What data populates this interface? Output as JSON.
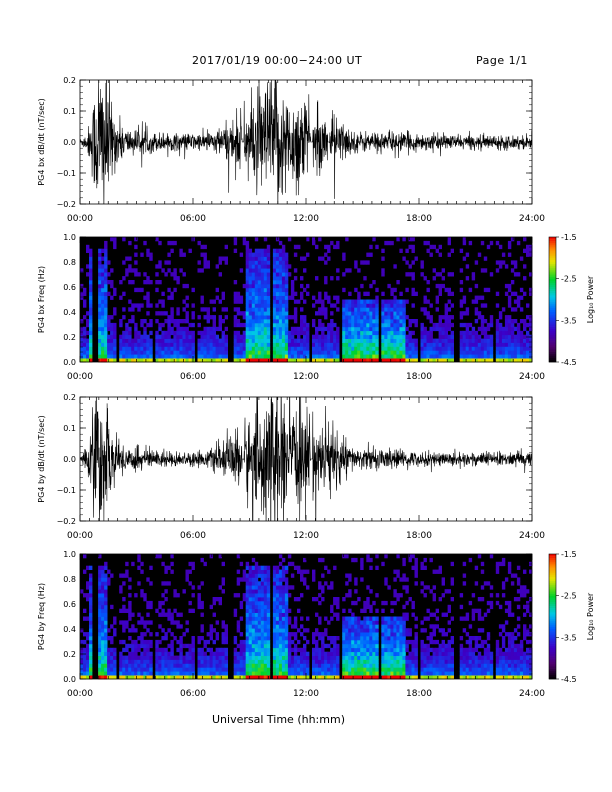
{
  "header": {
    "title": "2017/01/19  00:00−24:00 UT",
    "page_label": "Page 1/1"
  },
  "footer": {
    "x_axis_title": "Universal Time (hh:mm)"
  },
  "chart_data": [
    {
      "type": "line",
      "ylabel": "PG4 bx dB/dt (nT/sec)",
      "x_unit": "hours UT",
      "xlim": [
        0,
        24
      ],
      "ylim": [
        -0.2,
        0.2
      ],
      "x_tick_labels": [
        "00:00",
        "06:00",
        "12:00",
        "18:00",
        "24:00"
      ],
      "y_tick_labels": [
        "0.2",
        "0.1",
        "0.0",
        "−0.1",
        "−0.2"
      ],
      "envelope": [
        {
          "x": 0.0,
          "y": 0.01
        },
        {
          "x": 0.4,
          "y": 0.03
        },
        {
          "x": 0.7,
          "y": 0.12
        },
        {
          "x": 1.0,
          "y": 0.25
        },
        {
          "x": 1.4,
          "y": 0.22
        },
        {
          "x": 1.8,
          "y": 0.08
        },
        {
          "x": 2.5,
          "y": 0.04
        },
        {
          "x": 3.5,
          "y": 0.03
        },
        {
          "x": 5.0,
          "y": 0.025
        },
        {
          "x": 6.5,
          "y": 0.025
        },
        {
          "x": 7.5,
          "y": 0.04
        },
        {
          "x": 8.5,
          "y": 0.09
        },
        {
          "x": 9.5,
          "y": 0.14
        },
        {
          "x": 10.5,
          "y": 0.22
        },
        {
          "x": 11.0,
          "y": 0.12
        },
        {
          "x": 11.7,
          "y": 0.16
        },
        {
          "x": 12.3,
          "y": 0.08
        },
        {
          "x": 13.5,
          "y": 0.08
        },
        {
          "x": 14.5,
          "y": 0.03
        },
        {
          "x": 16.0,
          "y": 0.03
        },
        {
          "x": 18.0,
          "y": 0.025
        },
        {
          "x": 20.0,
          "y": 0.02
        },
        {
          "x": 22.0,
          "y": 0.02
        },
        {
          "x": 24.0,
          "y": 0.02
        }
      ],
      "gaps_hours": [
        8.65,
        12.3,
        13.2
      ]
    },
    {
      "type": "heatmap",
      "ylabel": "PG4 bx Freq (Hz)",
      "colorbar_label": "Log₁₀ Power",
      "xlim": [
        0,
        24
      ],
      "ylim": [
        0,
        1.0
      ],
      "x_tick_labels": [
        "00:00",
        "06:00",
        "12:00",
        "18:00",
        "24:00"
      ],
      "y_tick_labels": [
        "1.0",
        "0.8",
        "0.6",
        "0.4",
        "0.2",
        "0.0"
      ],
      "colorbar_ticks": [
        "-1.5",
        "-2.5",
        "-3.5",
        "-4.5"
      ],
      "colorbar_range": [
        -4.5,
        -1.5
      ],
      "blank_columns_hours": [
        0.8,
        2.0,
        3.9,
        6.2,
        8.0,
        10.2,
        12.3,
        13.9,
        15.9,
        18.0,
        20.0,
        22.0
      ],
      "high_power_bands": [
        {
          "from_hour": 0.5,
          "to_hour": 1.5,
          "max_freq": 0.9
        },
        {
          "from_hour": 8.8,
          "to_hour": 11.0,
          "max_freq": 0.9
        },
        {
          "from_hour": 13.8,
          "to_hour": 17.2,
          "max_freq": 0.5
        }
      ]
    },
    {
      "type": "line",
      "ylabel": "PG4 by dB/dt (nT/sec)",
      "x_unit": "hours UT",
      "xlim": [
        0,
        24
      ],
      "ylim": [
        -0.2,
        0.2
      ],
      "x_tick_labels": [
        "00:00",
        "06:00",
        "12:00",
        "18:00",
        "24:00"
      ],
      "y_tick_labels": [
        "0.2",
        "0.1",
        "0.0",
        "−0.1",
        "−0.2"
      ],
      "envelope": [
        {
          "x": 0.0,
          "y": 0.01
        },
        {
          "x": 0.4,
          "y": 0.04
        },
        {
          "x": 0.7,
          "y": 0.14
        },
        {
          "x": 1.0,
          "y": 0.22
        },
        {
          "x": 1.4,
          "y": 0.15
        },
        {
          "x": 1.8,
          "y": 0.06
        },
        {
          "x": 2.5,
          "y": 0.04
        },
        {
          "x": 3.5,
          "y": 0.03
        },
        {
          "x": 5.0,
          "y": 0.02
        },
        {
          "x": 6.5,
          "y": 0.02
        },
        {
          "x": 7.5,
          "y": 0.04
        },
        {
          "x": 8.5,
          "y": 0.09
        },
        {
          "x": 9.5,
          "y": 0.16
        },
        {
          "x": 10.5,
          "y": 0.22
        },
        {
          "x": 11.0,
          "y": 0.12
        },
        {
          "x": 11.7,
          "y": 0.15
        },
        {
          "x": 12.5,
          "y": 0.1
        },
        {
          "x": 13.3,
          "y": 0.11
        },
        {
          "x": 14.5,
          "y": 0.03
        },
        {
          "x": 16.0,
          "y": 0.03
        },
        {
          "x": 18.0,
          "y": 0.02
        },
        {
          "x": 20.0,
          "y": 0.02
        },
        {
          "x": 22.0,
          "y": 0.02
        },
        {
          "x": 24.0,
          "y": 0.02
        }
      ],
      "gaps_hours": [
        8.65,
        12.3
      ]
    },
    {
      "type": "heatmap",
      "ylabel": "PG4 by Freq (Hz)",
      "colorbar_label": "Log₁₀ Power",
      "xlim": [
        0,
        24
      ],
      "ylim": [
        0,
        1.0
      ],
      "x_tick_labels": [
        "00:00",
        "06:00",
        "12:00",
        "18:00",
        "24:00"
      ],
      "y_tick_labels": [
        "1.0",
        "0.8",
        "0.6",
        "0.4",
        "0.2",
        "0.0"
      ],
      "colorbar_ticks": [
        "-1.5",
        "-2.5",
        "-3.5",
        "-4.5"
      ],
      "colorbar_range": [
        -4.5,
        -1.5
      ],
      "blank_columns_hours": [
        0.8,
        2.0,
        3.9,
        6.2,
        8.0,
        10.2,
        12.3,
        13.9,
        15.9,
        18.0,
        20.0,
        22.0
      ],
      "high_power_bands": [
        {
          "from_hour": 0.5,
          "to_hour": 1.5,
          "max_freq": 0.9
        },
        {
          "from_hour": 8.8,
          "to_hour": 11.0,
          "max_freq": 0.9
        },
        {
          "from_hour": 13.8,
          "to_hour": 17.2,
          "max_freq": 0.5
        }
      ]
    }
  ]
}
